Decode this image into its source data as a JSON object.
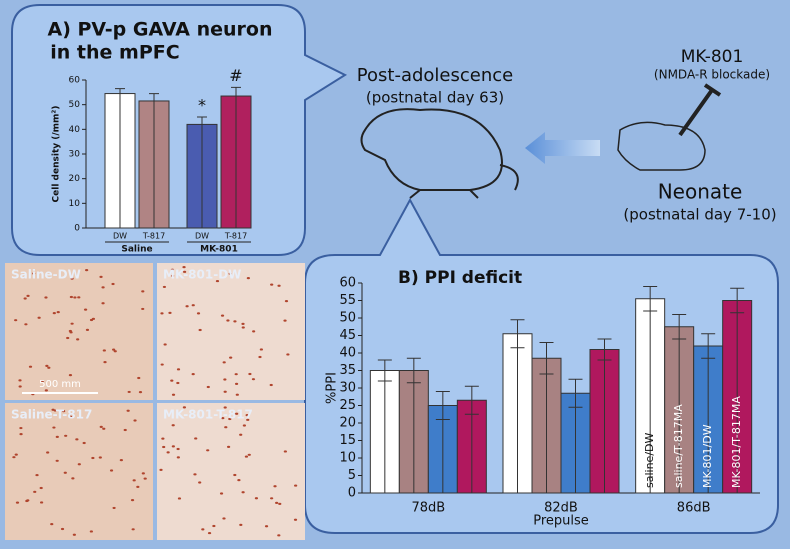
{
  "texts": {
    "mouse_top": "Post-adolescence",
    "mouse_top_sub": "(postnatal day 63)",
    "drug": "MK-801",
    "drug_sub": "(NMDA-R blockade)",
    "neonate": "Neonate",
    "neonate_sub": "(postnatal day 7-10)",
    "panels": [
      "Saline-DW",
      "MK-801-DW",
      "Saline-T-817",
      "MK-801-T-817"
    ],
    "scale": "500 mm"
  },
  "chart_data": [
    {
      "type": "bar",
      "title": [
        "A) PV-p GAVA neuron",
        "in the mPFC"
      ],
      "y_label": "Cell density (/mm²)",
      "categories": [
        "DW",
        "T-817",
        "DW",
        "T-817"
      ],
      "groups": [
        "Saline",
        "MK-801"
      ],
      "values": [
        54.5,
        51.5,
        42,
        53.5
      ],
      "errors": [
        2,
        3,
        3,
        3.5
      ],
      "colors": [
        "#ffffff",
        "#b08484",
        "#4a5cb0",
        "#b0205e"
      ],
      "annotations": [
        null,
        null,
        "*",
        "#"
      ],
      "ylim": [
        0,
        60
      ],
      "yticks": [
        0,
        10,
        20,
        30,
        40,
        50,
        60
      ]
    },
    {
      "type": "grouped_bar",
      "title": "B) PPI deficit",
      "y_label": "%PPI",
      "x_label": "Prepulse",
      "categories": [
        "78dB",
        "82dB",
        "86dB"
      ],
      "series": [
        {
          "name": "saline/DW",
          "color": "#ffffff",
          "values": [
            35,
            45.5,
            55.5
          ],
          "errors": [
            3,
            4,
            3.5
          ]
        },
        {
          "name": "saline/T-817MA",
          "color": "#a88282",
          "values": [
            35,
            38.5,
            47.5
          ],
          "errors": [
            3.5,
            4.5,
            3.5
          ]
        },
        {
          "name": "MK-801/DW",
          "color": "#3f7dca",
          "values": [
            25,
            28.5,
            42
          ],
          "errors": [
            4,
            4,
            3.5
          ]
        },
        {
          "name": "MK-801/T-817MA",
          "color": "#b0185e",
          "values": [
            26.5,
            41,
            55
          ],
          "errors": [
            4,
            3,
            3.5
          ]
        }
      ],
      "ylim": [
        0,
        60
      ],
      "yticks": [
        0,
        5,
        10,
        15,
        20,
        25,
        30,
        35,
        40,
        45,
        50,
        55,
        60
      ]
    }
  ]
}
